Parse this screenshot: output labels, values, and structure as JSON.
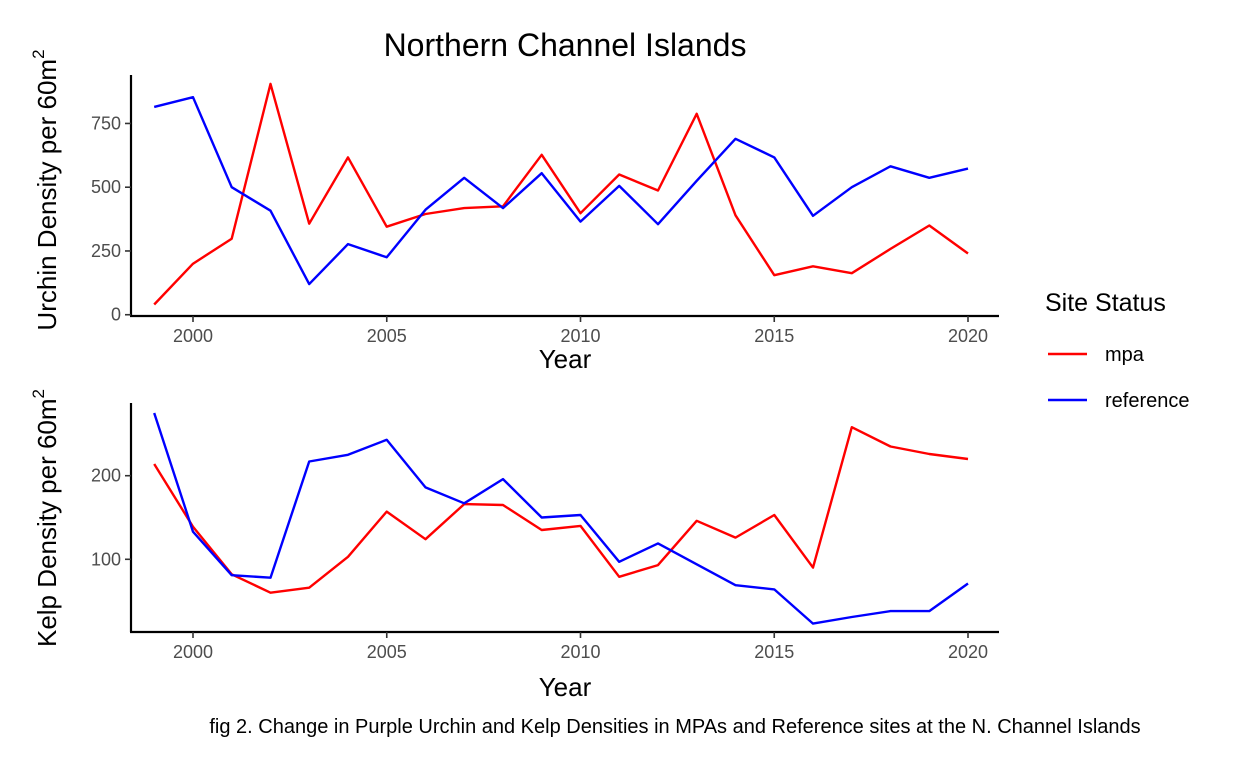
{
  "chart_data": [
    {
      "type": "line",
      "title": "Northern Channel Islands",
      "xlabel": "Year",
      "ylabel": "Urchin Density per 60m",
      "ylabel_superscript": "2",
      "xlim": [
        1998.4,
        2020.8
      ],
      "ylim": [
        -5,
        940
      ],
      "x_ticks": [
        2000,
        2005,
        2010,
        2015,
        2020
      ],
      "x_tick_labels": [
        "2000",
        "2005",
        "2010",
        "2015",
        "2020"
      ],
      "y_ticks": [
        0,
        250,
        500,
        750
      ],
      "y_tick_labels": [
        "0",
        "250",
        "500",
        "750"
      ],
      "x": [
        1999,
        2000,
        2001,
        2002,
        2003,
        2004,
        2005,
        2006,
        2007,
        2008,
        2009,
        2010,
        2011,
        2012,
        2013,
        2014,
        2015,
        2016,
        2017,
        2018,
        2019,
        2020
      ],
      "series": [
        {
          "name": "mpa",
          "color": "#ff0000",
          "values": [
            40,
            200,
            298,
            905,
            357,
            617,
            345,
            395,
            418,
            425,
            627,
            398,
            550,
            487,
            788,
            390,
            155,
            190,
            163,
            258,
            350,
            240
          ]
        },
        {
          "name": "reference",
          "color": "#0000ff",
          "values": [
            815,
            853,
            500,
            408,
            120,
            277,
            225,
            412,
            537,
            418,
            555,
            365,
            505,
            355,
            525,
            690,
            617,
            388,
            500,
            582,
            537,
            573
          ]
        }
      ],
      "grid": false
    },
    {
      "type": "line",
      "xlabel": "Year",
      "ylabel": "Kelp Density per 60m",
      "ylabel_superscript": "2",
      "xlim": [
        1998.4,
        2020.8
      ],
      "ylim": [
        13,
        287
      ],
      "x_ticks": [
        2000,
        2005,
        2010,
        2015,
        2020
      ],
      "x_tick_labels": [
        "2000",
        "2005",
        "2010",
        "2015",
        "2020"
      ],
      "y_ticks": [
        100,
        200
      ],
      "y_tick_labels": [
        "100",
        "200"
      ],
      "x": [
        1999,
        2000,
        2001,
        2002,
        2003,
        2004,
        2005,
        2006,
        2007,
        2008,
        2009,
        2010,
        2011,
        2012,
        2013,
        2014,
        2015,
        2016,
        2017,
        2018,
        2019,
        2020
      ],
      "series": [
        {
          "name": "mpa",
          "color": "#ff0000",
          "values": [
            214,
            139,
            82,
            60,
            66,
            103,
            157,
            124,
            166,
            165,
            135,
            140,
            79,
            93,
            146,
            126,
            153,
            90,
            258,
            235,
            226,
            220
          ]
        },
        {
          "name": "reference",
          "color": "#0000ff",
          "values": [
            275,
            133,
            81,
            78,
            217,
            225,
            243,
            186,
            167,
            196,
            150,
            153,
            97,
            119,
            94,
            69,
            64,
            23,
            31,
            38,
            38,
            71
          ]
        }
      ],
      "grid": false
    }
  ],
  "legend": {
    "title": "Site Status",
    "placement": "right",
    "items": [
      {
        "label": "mpa",
        "color": "#ff0000"
      },
      {
        "label": "reference",
        "color": "#0000ff"
      }
    ]
  },
  "caption": "fig 2. Change in Purple Urchin and Kelp Densities in MPAs and Reference sites at the N. Channel Islands"
}
